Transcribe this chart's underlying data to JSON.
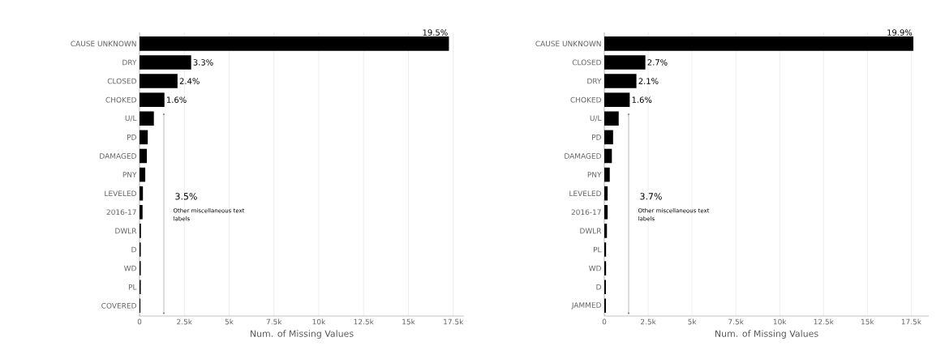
{
  "chart_data": [
    {
      "type": "bar",
      "orientation": "horizontal",
      "xlabel": "Num. of Missing Values",
      "categories": [
        "CAUSE UNKNOWN",
        "DRY",
        "CLOSED",
        "CHOKED",
        "U/L",
        "PD",
        "DAMAGED",
        "PNY",
        "LEVELED",
        "2016-17",
        "DWLR",
        "D",
        "WD",
        "PL",
        "COVERED"
      ],
      "values": [
        17260,
        2880,
        2120,
        1390,
        800,
        460,
        410,
        320,
        190,
        170,
        80,
        70,
        70,
        70,
        50
      ],
      "color": "#000000",
      "xlim": [
        0,
        18100
      ],
      "xticks": [
        0,
        {
          "value": 2500,
          "label": "2.5k"
        },
        {
          "value": 5000,
          "label": "5k"
        },
        {
          "value": 7500,
          "label": "7.5k"
        },
        {
          "value": 10000,
          "label": "10k"
        },
        {
          "value": 12500,
          "label": "12.5k"
        },
        {
          "value": 15000,
          "label": "15k"
        },
        {
          "value": 17500,
          "label": "17.5k"
        }
      ],
      "grid": "x",
      "annotations": [
        {
          "text": "19.5%",
          "x": 17260,
          "y": "CAUSE UNKNOWN"
        },
        {
          "text": "3.3%",
          "x": 2880,
          "y": "DRY"
        },
        {
          "text": "2.4%",
          "x": 2120,
          "y": "CLOSED"
        },
        {
          "text": "1.6%",
          "x": 1390,
          "y": "CHOKED"
        },
        "3.5%",
        "Other miscellaneous text labels"
      ]
    },
    {
      "type": "bar",
      "orientation": "horizontal",
      "xlabel": "Num. of Missing Values",
      "categories": [
        "CAUSE UNKNOWN",
        "CLOSED",
        "DRY",
        "CHOKED",
        "U/L",
        "PD",
        "DAMAGED",
        "PNY",
        "LEVELED",
        "2016-17",
        "DWLR",
        "PL",
        "WD",
        "D",
        "JAMMED"
      ],
      "values": [
        17620,
        2340,
        1830,
        1450,
        820,
        500,
        430,
        310,
        190,
        190,
        150,
        100,
        100,
        90,
        90
      ],
      "color": "#000000",
      "xlim": [
        0,
        18500
      ],
      "xticks": [
        0,
        {
          "value": 2500,
          "label": "2.5k"
        },
        {
          "value": 5000,
          "label": "5k"
        },
        {
          "value": 7500,
          "label": "7.5k"
        },
        {
          "value": 10000,
          "label": "10k"
        },
        {
          "value": 12500,
          "label": "12.5k"
        },
        {
          "value": 15000,
          "label": "15k"
        },
        {
          "value": 17500,
          "label": "17.5k"
        }
      ],
      "grid": "x",
      "annotations": [
        {
          "text": "19.9%",
          "x": 17620,
          "y": "CAUSE UNKNOWN"
        },
        {
          "text": "2.7%",
          "x": 2340,
          "y": "CLOSED"
        },
        {
          "text": "2.1%",
          "x": 1830,
          "y": "DRY"
        },
        {
          "text": "1.6%",
          "x": 1450,
          "y": "CHOKED"
        },
        "3.7%",
        "Other miscellaneous text labels"
      ]
    }
  ]
}
